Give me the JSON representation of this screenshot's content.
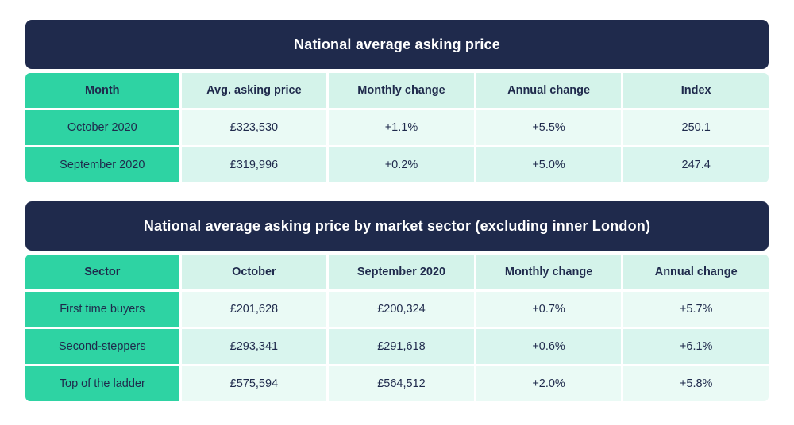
{
  "colors": {
    "navy": "#1f2a4c",
    "green": "#2ed3a3",
    "mint_header": "#d4f3ea",
    "mint_row_light": "#eafaf5",
    "mint_row_dark": "#d9f5ee",
    "white": "#ffffff"
  },
  "chart_data": [
    {
      "type": "table",
      "title": "National average asking price",
      "columns": [
        "Month",
        "Avg. asking price",
        "Monthly change",
        "Annual change",
        "Index"
      ],
      "rows": [
        [
          "October 2020",
          "£323,530",
          "+1.1%",
          "+5.5%",
          "250.1"
        ],
        [
          "September 2020",
          "£319,996",
          "+0.2%",
          "+5.0%",
          "247.4"
        ]
      ]
    },
    {
      "type": "table",
      "title": "National average asking price by market sector (excluding inner London)",
      "columns": [
        "Sector",
        "October",
        "September 2020",
        "Monthly change",
        "Annual change"
      ],
      "rows": [
        [
          "First time buyers",
          "£201,628",
          "£200,324",
          "+0.7%",
          "+5.7%"
        ],
        [
          "Second-steppers",
          "£293,341",
          "£291,618",
          "+0.6%",
          "+6.1%"
        ],
        [
          "Top of the ladder",
          "£575,594",
          "£564,512",
          "+2.0%",
          "+5.8%"
        ]
      ]
    }
  ]
}
